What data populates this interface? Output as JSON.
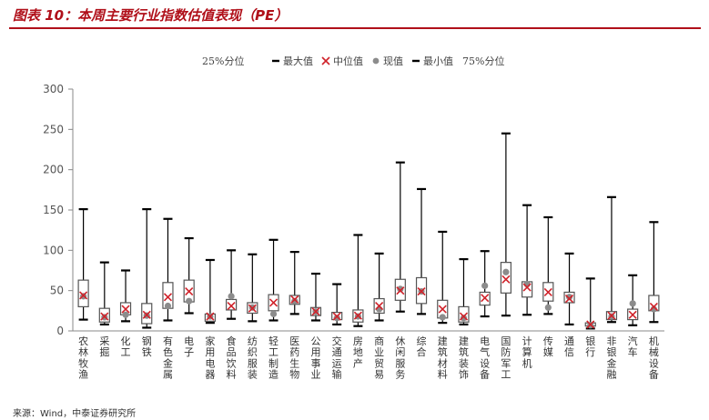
{
  "title": "图表 10：本周主要行业指数估值表现（PE）",
  "source": "来源：Wind，中泰证券研究所",
  "chart_data": {
    "type": "boxplot",
    "legend": [
      "25%分位",
      "最大值",
      "中位值",
      "现值",
      "最小值",
      "75%分位"
    ],
    "ylim": [
      0,
      300
    ],
    "yticks": [
      0,
      50,
      100,
      150,
      200,
      250,
      300
    ],
    "colors": {
      "box": "#555555",
      "median": "#d0222a",
      "current": "#8c8c8c",
      "whisker": "#000000"
    },
    "categories": [
      "农林牧渔",
      "采掘",
      "化工",
      "钢铁",
      "有色金属",
      "电子",
      "家用电器",
      "食品饮料",
      "纺织服装",
      "轻工制造",
      "医药生物",
      "公用事业",
      "交通运输",
      "房地产",
      "商业贸易",
      "休闲服务",
      "综合",
      "建筑材料",
      "建筑装饰",
      "电气设备",
      "国防军工",
      "计算机",
      "传媒",
      "通信",
      "银行",
      "非银金融",
      "汽车",
      "机械设备"
    ],
    "max": [
      151,
      85,
      75,
      151,
      139,
      115,
      88,
      100,
      95,
      113,
      98,
      71,
      58,
      119,
      96,
      209,
      176,
      123,
      89,
      99,
      245,
      156,
      141,
      96,
      65,
      166,
      69,
      135
    ],
    "q75": [
      63,
      28,
      35,
      34,
      60,
      63,
      21,
      39,
      35,
      45,
      44,
      29,
      23,
      26,
      40,
      64,
      66,
      38,
      30,
      48,
      85,
      61,
      60,
      48,
      10,
      24,
      27,
      44
    ],
    "median": [
      44,
      18,
      27,
      20,
      42,
      49,
      18,
      31,
      28,
      35,
      39,
      24,
      18,
      19,
      31,
      50,
      49,
      27,
      18,
      41,
      64,
      54,
      48,
      40,
      8,
      19,
      20,
      30
    ],
    "q25": [
      30,
      11,
      20,
      9,
      28,
      36,
      12,
      26,
      22,
      25,
      33,
      19,
      14,
      11,
      22,
      38,
      34,
      16,
      11,
      32,
      47,
      42,
      37,
      35,
      6,
      14,
      14,
      25
    ],
    "min": [
      14,
      8,
      12,
      4,
      13,
      22,
      10,
      15,
      12,
      13,
      21,
      13,
      8,
      6,
      13,
      24,
      21,
      10,
      8,
      18,
      19,
      20,
      21,
      8,
      3,
      11,
      7,
      11
    ],
    "current": [
      43,
      17,
      20,
      19,
      31,
      37,
      18,
      43,
      29,
      21,
      37,
      24,
      16,
      18,
      27,
      52,
      49,
      17,
      16,
      56,
      73,
      58,
      29,
      42,
      7,
      18,
      34,
      27
    ]
  }
}
